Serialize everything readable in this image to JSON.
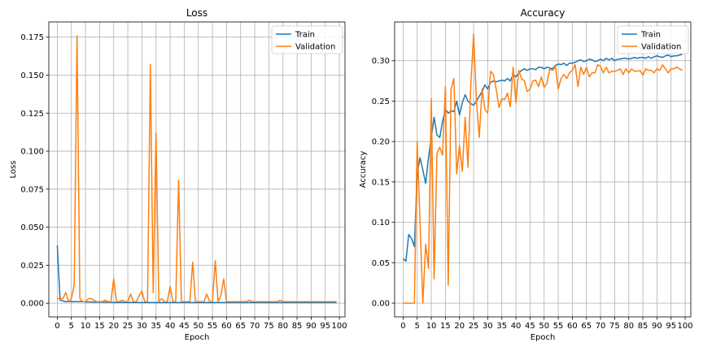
{
  "chart_data": [
    {
      "type": "line",
      "title": "Loss",
      "xlabel": "Epoch",
      "ylabel": "Loss",
      "xlim": [
        -3,
        102
      ],
      "ylim": [
        -0.009,
        0.185
      ],
      "xticks": [
        0,
        5,
        10,
        15,
        20,
        25,
        30,
        35,
        40,
        45,
        50,
        55,
        60,
        65,
        70,
        75,
        80,
        85,
        90,
        95,
        100
      ],
      "yticks": [
        0.0,
        0.025,
        0.05,
        0.075,
        0.1,
        0.125,
        0.15,
        0.175
      ],
      "ytick_labels": [
        "0.000",
        "0.025",
        "0.050",
        "0.075",
        "0.100",
        "0.125",
        "0.150",
        "0.175"
      ],
      "grid": true,
      "legend": "upper right",
      "series": [
        {
          "name": "Train",
          "color": "#1f77b4",
          "values": [
            0.038,
            0.002,
            0.0015,
            0.001,
            0.001,
            0.001,
            0.001,
            0.001,
            0.001,
            0.001,
            0.0008,
            0.0008,
            0.0008,
            0.0007,
            0.0007,
            0.0007,
            0.0006,
            0.0006,
            0.0006,
            0.0006,
            0.0005,
            0.0005,
            0.0005,
            0.0005,
            0.0005,
            0.0005,
            0.0005,
            0.0005,
            0.0005,
            0.0004,
            0.0004,
            0.0004,
            0.0004,
            0.0004,
            0.0004,
            0.0004,
            0.0004,
            0.0004,
            0.0004,
            0.0004,
            0.0004,
            0.0004,
            0.0004,
            0.0004,
            0.0004,
            0.0004,
            0.0004,
            0.0004,
            0.0004,
            0.0004,
            0.0004,
            0.0004,
            0.0004,
            0.0004,
            0.0004,
            0.0004,
            0.0004,
            0.0004,
            0.0004,
            0.0004,
            0.0004,
            0.0004,
            0.0004,
            0.0004,
            0.0004,
            0.0004,
            0.0004,
            0.0004,
            0.0004,
            0.0004,
            0.0004,
            0.0004,
            0.0004,
            0.0004,
            0.0004,
            0.0004,
            0.0004,
            0.0004,
            0.0004,
            0.0004,
            0.0004,
            0.0004,
            0.0004,
            0.0004,
            0.0004,
            0.0004,
            0.0004,
            0.0004,
            0.0004,
            0.0004,
            0.0004,
            0.0004,
            0.0004,
            0.0004,
            0.0004,
            0.0004,
            0.0004,
            0.0004,
            0.0004,
            0.0004
          ]
        },
        {
          "name": "Validation",
          "color": "#ff7f0e",
          "values": [
            0.003,
            0.003,
            0.003,
            0.007,
            0.001,
            0.003,
            0.012,
            0.176,
            0.003,
            0.001,
            0.001,
            0.003,
            0.003,
            0.002,
            0.001,
            0.001,
            0.001,
            0.002,
            0.001,
            0.001,
            0.016,
            0.001,
            0.001,
            0.002,
            0.001,
            0.001,
            0.006,
            0.001,
            0.001,
            0.005,
            0.008,
            0.001,
            0.001,
            0.157,
            0.007,
            0.112,
            0.001,
            0.003,
            0.001,
            0.001,
            0.011,
            0.001,
            0.001,
            0.081,
            0.001,
            0.001,
            0.001,
            0.001,
            0.027,
            0.001,
            0.001,
            0.001,
            0.001,
            0.006,
            0.001,
            0.001,
            0.028,
            0.001,
            0.005,
            0.016,
            0.001,
            0.001,
            0.001,
            0.001,
            0.001,
            0.001,
            0.001,
            0.001,
            0.002,
            0.001,
            0.001,
            0.001,
            0.001,
            0.001,
            0.001,
            0.001,
            0.001,
            0.001,
            0.001,
            0.002,
            0.001,
            0.001,
            0.001,
            0.001,
            0.001,
            0.001,
            0.001,
            0.001,
            0.001,
            0.001,
            0.001,
            0.001,
            0.001,
            0.001,
            0.001,
            0.001,
            0.001,
            0.001,
            0.001,
            0.001
          ]
        }
      ]
    },
    {
      "type": "line",
      "title": "Accuracy",
      "xlabel": "Epoch",
      "ylabel": "Accuracy",
      "xlim": [
        -3,
        102
      ],
      "ylim": [
        -0.017,
        0.348
      ],
      "xticks": [
        0,
        5,
        10,
        15,
        20,
        25,
        30,
        35,
        40,
        45,
        50,
        55,
        60,
        65,
        70,
        75,
        80,
        85,
        90,
        95,
        100
      ],
      "yticks": [
        0.0,
        0.05,
        0.1,
        0.15,
        0.2,
        0.25,
        0.3
      ],
      "ytick_labels": [
        "0.00",
        "0.05",
        "0.10",
        "0.15",
        "0.20",
        "0.25",
        "0.30"
      ],
      "grid": true,
      "legend": "upper right",
      "series": [
        {
          "name": "Train",
          "color": "#1f77b4",
          "values": [
            0.055,
            0.052,
            0.085,
            0.08,
            0.07,
            0.16,
            0.18,
            0.165,
            0.148,
            0.18,
            0.205,
            0.23,
            0.208,
            0.205,
            0.225,
            0.24,
            0.235,
            0.238,
            0.237,
            0.25,
            0.233,
            0.248,
            0.258,
            0.25,
            0.247,
            0.245,
            0.25,
            0.256,
            0.262,
            0.27,
            0.265,
            0.273,
            0.275,
            0.274,
            0.275,
            0.276,
            0.275,
            0.278,
            0.275,
            0.283,
            0.28,
            0.285,
            0.288,
            0.29,
            0.288,
            0.29,
            0.29,
            0.289,
            0.292,
            0.292,
            0.29,
            0.292,
            0.291,
            0.29,
            0.294,
            0.296,
            0.295,
            0.297,
            0.294,
            0.297,
            0.297,
            0.298,
            0.3,
            0.301,
            0.299,
            0.3,
            0.302,
            0.301,
            0.299,
            0.3,
            0.302,
            0.3,
            0.303,
            0.301,
            0.303,
            0.3,
            0.302,
            0.302,
            0.303,
            0.303,
            0.302,
            0.303,
            0.304,
            0.303,
            0.304,
            0.304,
            0.303,
            0.305,
            0.303,
            0.305,
            0.306,
            0.305,
            0.304,
            0.306,
            0.307,
            0.305,
            0.306,
            0.306,
            0.307,
            0.308
          ]
        },
        {
          "name": "Validation",
          "color": "#ff7f0e",
          "values": [
            0.0,
            0.0,
            0.0,
            0.0,
            0.0,
            0.2,
            0.1,
            0.0,
            0.073,
            0.043,
            0.253,
            0.03,
            0.185,
            0.193,
            0.183,
            0.268,
            0.022,
            0.265,
            0.278,
            0.16,
            0.195,
            0.163,
            0.23,
            0.168,
            0.27,
            0.333,
            0.25,
            0.205,
            0.265,
            0.24,
            0.235,
            0.287,
            0.283,
            0.265,
            0.242,
            0.253,
            0.252,
            0.26,
            0.243,
            0.292,
            0.248,
            0.288,
            0.278,
            0.275,
            0.262,
            0.265,
            0.275,
            0.276,
            0.268,
            0.28,
            0.267,
            0.272,
            0.29,
            0.288,
            0.293,
            0.265,
            0.278,
            0.283,
            0.278,
            0.285,
            0.288,
            0.295,
            0.268,
            0.292,
            0.283,
            0.292,
            0.28,
            0.285,
            0.285,
            0.295,
            0.293,
            0.285,
            0.292,
            0.285,
            0.287,
            0.287,
            0.288,
            0.29,
            0.283,
            0.29,
            0.285,
            0.29,
            0.287,
            0.287,
            0.288,
            0.282,
            0.29,
            0.288,
            0.288,
            0.285,
            0.29,
            0.288,
            0.295,
            0.29,
            0.285,
            0.29,
            0.29,
            0.292,
            0.29,
            0.288
          ]
        }
      ]
    }
  ]
}
